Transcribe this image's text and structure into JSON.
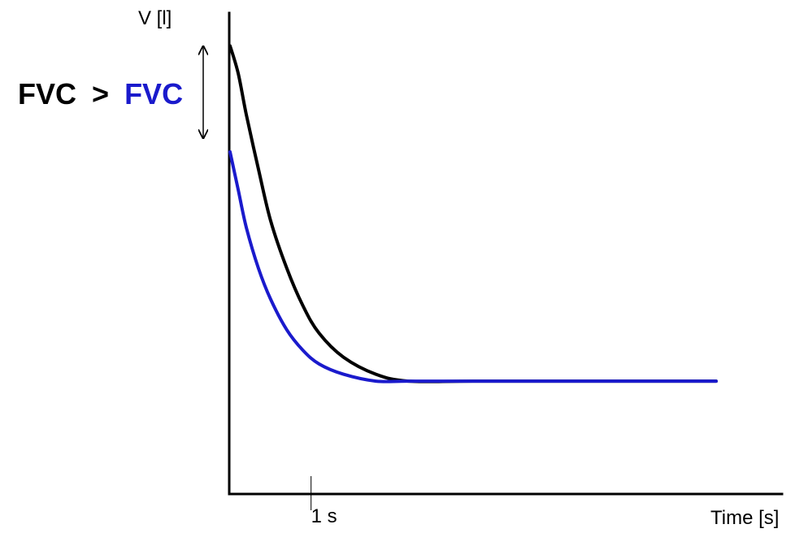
{
  "chart_data": {
    "type": "line",
    "xlabel": "Time [s]",
    "ylabel": "V [l]",
    "x_tick_label": "1 s",
    "annotation": {
      "left": "FVC",
      "operator": ">",
      "right": "FVC",
      "left_color": "#000000",
      "right_color": "#1a1acc"
    },
    "series": [
      {
        "color": "#000000",
        "x": [
          0.0,
          0.1,
          0.2,
          0.35,
          0.5,
          0.7,
          0.9,
          1.1,
          1.4,
          1.8,
          2.2,
          3.0,
          4.5,
          6.0
        ],
        "y": [
          0.98,
          0.9,
          0.78,
          0.62,
          0.47,
          0.33,
          0.22,
          0.14,
          0.07,
          0.02,
          0.0,
          0.0,
          0.0,
          0.0
        ]
      },
      {
        "color": "#1a1acc",
        "x": [
          0.0,
          0.1,
          0.2,
          0.35,
          0.5,
          0.7,
          0.9,
          1.1,
          1.4,
          1.8,
          2.2,
          3.0,
          4.5,
          6.0
        ],
        "y": [
          0.67,
          0.56,
          0.45,
          0.33,
          0.24,
          0.15,
          0.09,
          0.05,
          0.02,
          0.0,
          0.0,
          0.0,
          0.0,
          0.0
        ]
      }
    ],
    "xlim": [
      0,
      6.0
    ],
    "ylim": [
      -0.33,
      1.0
    ],
    "grid": false,
    "legend": "none"
  }
}
